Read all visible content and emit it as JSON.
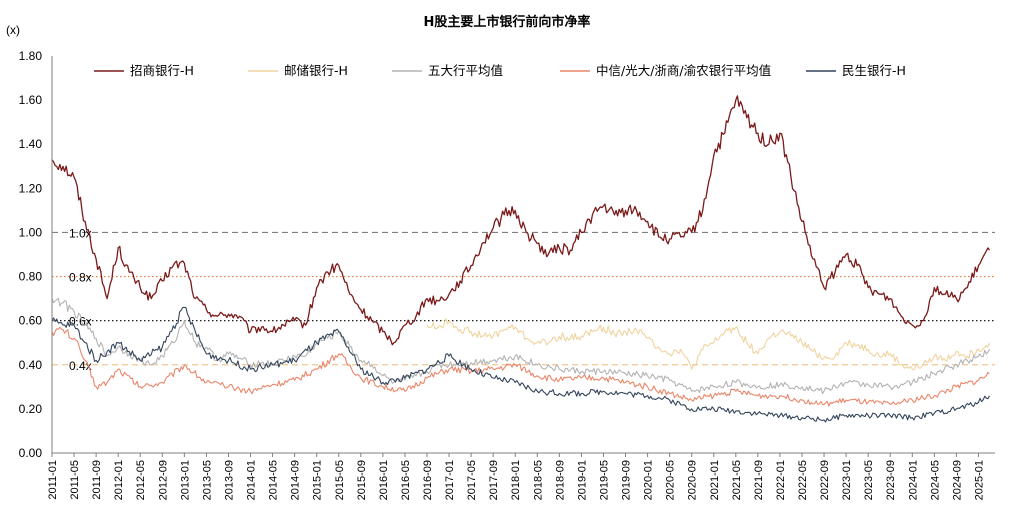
{
  "chart_data": {
    "type": "line",
    "title": "H股主要上市银行前向市净率",
    "ylabel": "(x)",
    "xlabel": "",
    "ylim": [
      0,
      1.8
    ],
    "y_ticks": [
      "0.00",
      "0.20",
      "0.40",
      "0.60",
      "0.80",
      "1.00",
      "1.20",
      "1.40",
      "1.60",
      "1.80"
    ],
    "x_ticks": [
      "2011-01",
      "2011-05",
      "2011-09",
      "2012-01",
      "2012-05",
      "2012-09",
      "2013-01",
      "2013-05",
      "2013-09",
      "2014-01",
      "2014-05",
      "2014-09",
      "2015-01",
      "2015-05",
      "2015-09",
      "2016-01",
      "2016-05",
      "2016-09",
      "2017-01",
      "2017-05",
      "2017-09",
      "2018-01",
      "2018-05",
      "2018-09",
      "2019-01",
      "2019-05",
      "2019-09",
      "2020-01",
      "2020-05",
      "2020-09",
      "2021-01",
      "2021-05",
      "2021-09",
      "2022-01",
      "2022-05",
      "2022-09",
      "2023-01",
      "2023-05",
      "2023-09",
      "2024-01",
      "2024-05",
      "2024-09",
      "2025-01"
    ],
    "reference_lines": [
      {
        "value": 1.0,
        "label": "1.0x",
        "color": "#7f7f7f",
        "style": "dashed"
      },
      {
        "value": 0.8,
        "label": "0.8x",
        "color": "#e07b39",
        "style": "dotted"
      },
      {
        "value": 0.6,
        "label": "0.6x",
        "color": "#000000",
        "style": "dotted"
      },
      {
        "value": 0.4,
        "label": "0.4x",
        "color": "#f0c890",
        "style": "dashed"
      }
    ],
    "legend_position": "top",
    "series": [
      {
        "name": "招商银行-H",
        "color": "#7b1a1a",
        "x": [
          "2011-01",
          "2011-03",
          "2011-05",
          "2011-07",
          "2011-09",
          "2011-11",
          "2012-01",
          "2012-03",
          "2012-05",
          "2012-07",
          "2012-09",
          "2012-11",
          "2013-01",
          "2013-03",
          "2013-05",
          "2013-07",
          "2013-09",
          "2013-11",
          "2014-01",
          "2014-03",
          "2014-05",
          "2014-07",
          "2014-09",
          "2014-11",
          "2015-01",
          "2015-03",
          "2015-05",
          "2015-07",
          "2015-09",
          "2015-11",
          "2016-01",
          "2016-03",
          "2016-05",
          "2016-07",
          "2016-09",
          "2016-11",
          "2017-01",
          "2017-03",
          "2017-05",
          "2017-07",
          "2017-09",
          "2017-11",
          "2018-01",
          "2018-03",
          "2018-05",
          "2018-07",
          "2018-09",
          "2018-11",
          "2019-01",
          "2019-03",
          "2019-05",
          "2019-07",
          "2019-09",
          "2019-11",
          "2020-01",
          "2020-03",
          "2020-05",
          "2020-07",
          "2020-09",
          "2020-11",
          "2021-01",
          "2021-03",
          "2021-05",
          "2021-07",
          "2021-09",
          "2021-11",
          "2022-01",
          "2022-03",
          "2022-05",
          "2022-07",
          "2022-09",
          "2022-11",
          "2023-01",
          "2023-03",
          "2023-05",
          "2023-07",
          "2023-09",
          "2023-11",
          "2024-01",
          "2024-03",
          "2024-05",
          "2024-07",
          "2024-09",
          "2024-11",
          "2025-01",
          "2025-03"
        ],
        "values": [
          1.33,
          1.3,
          1.25,
          1.05,
          0.88,
          0.7,
          0.93,
          0.82,
          0.75,
          0.7,
          0.78,
          0.85,
          0.86,
          0.7,
          0.65,
          0.62,
          0.63,
          0.62,
          0.55,
          0.57,
          0.55,
          0.58,
          0.6,
          0.58,
          0.75,
          0.82,
          0.85,
          0.72,
          0.65,
          0.6,
          0.55,
          0.5,
          0.58,
          0.62,
          0.7,
          0.69,
          0.72,
          0.78,
          0.85,
          0.95,
          1.02,
          1.08,
          1.1,
          1.0,
          0.95,
          0.9,
          0.93,
          0.92,
          1.0,
          1.08,
          1.12,
          1.08,
          1.1,
          1.1,
          1.05,
          0.98,
          0.97,
          0.98,
          1.0,
          1.1,
          1.35,
          1.45,
          1.6,
          1.52,
          1.45,
          1.4,
          1.45,
          1.25,
          1.05,
          0.88,
          0.75,
          0.82,
          0.9,
          0.85,
          0.75,
          0.72,
          0.7,
          0.62,
          0.58,
          0.6,
          0.75,
          0.72,
          0.7,
          0.75,
          0.85,
          0.92
        ]
      },
      {
        "name": "邮储银行-H",
        "color": "#f0d3a0",
        "x": [
          "2016-09",
          "2016-11",
          "2017-01",
          "2017-03",
          "2017-05",
          "2017-07",
          "2017-09",
          "2017-11",
          "2018-01",
          "2018-03",
          "2018-05",
          "2018-07",
          "2018-09",
          "2018-11",
          "2019-01",
          "2019-03",
          "2019-05",
          "2019-07",
          "2019-09",
          "2019-11",
          "2020-01",
          "2020-03",
          "2020-05",
          "2020-07",
          "2020-09",
          "2020-11",
          "2021-01",
          "2021-03",
          "2021-05",
          "2021-07",
          "2021-09",
          "2021-11",
          "2022-01",
          "2022-03",
          "2022-05",
          "2022-07",
          "2022-09",
          "2022-11",
          "2023-01",
          "2023-03",
          "2023-05",
          "2023-07",
          "2023-09",
          "2023-11",
          "2024-01",
          "2024-03",
          "2024-05",
          "2024-07",
          "2024-09",
          "2024-11",
          "2025-01",
          "2025-03"
        ],
        "values": [
          0.58,
          0.57,
          0.6,
          0.56,
          0.55,
          0.53,
          0.53,
          0.56,
          0.57,
          0.52,
          0.5,
          0.5,
          0.53,
          0.52,
          0.53,
          0.55,
          0.57,
          0.54,
          0.55,
          0.56,
          0.52,
          0.48,
          0.45,
          0.47,
          0.38,
          0.47,
          0.5,
          0.55,
          0.57,
          0.5,
          0.45,
          0.52,
          0.55,
          0.53,
          0.5,
          0.46,
          0.43,
          0.44,
          0.5,
          0.49,
          0.47,
          0.44,
          0.45,
          0.4,
          0.38,
          0.4,
          0.44,
          0.42,
          0.46,
          0.44,
          0.47,
          0.5
        ]
      },
      {
        "name": "五大行平均值",
        "color": "#b3b3b3",
        "x": [
          "2011-01",
          "2011-03",
          "2011-05",
          "2011-07",
          "2011-09",
          "2011-11",
          "2012-01",
          "2012-03",
          "2012-05",
          "2012-07",
          "2012-09",
          "2012-11",
          "2013-01",
          "2013-03",
          "2013-05",
          "2013-07",
          "2013-09",
          "2013-11",
          "2014-01",
          "2014-03",
          "2014-05",
          "2014-07",
          "2014-09",
          "2014-11",
          "2015-01",
          "2015-03",
          "2015-05",
          "2015-07",
          "2015-09",
          "2015-11",
          "2016-01",
          "2016-03",
          "2016-05",
          "2016-07",
          "2016-09",
          "2016-11",
          "2017-01",
          "2017-05",
          "2017-09",
          "2018-01",
          "2018-05",
          "2018-09",
          "2019-01",
          "2019-05",
          "2019-09",
          "2020-01",
          "2020-05",
          "2020-09",
          "2021-01",
          "2021-05",
          "2021-09",
          "2022-01",
          "2022-05",
          "2022-09",
          "2023-01",
          "2023-05",
          "2023-09",
          "2024-01",
          "2024-05",
          "2024-09",
          "2025-01",
          "2025-03"
        ],
        "values": [
          0.7,
          0.68,
          0.64,
          0.58,
          0.52,
          0.44,
          0.48,
          0.45,
          0.42,
          0.4,
          0.44,
          0.5,
          0.6,
          0.5,
          0.48,
          0.42,
          0.45,
          0.43,
          0.4,
          0.41,
          0.4,
          0.42,
          0.44,
          0.44,
          0.5,
          0.52,
          0.55,
          0.48,
          0.42,
          0.4,
          0.35,
          0.32,
          0.33,
          0.35,
          0.37,
          0.4,
          0.4,
          0.41,
          0.42,
          0.44,
          0.4,
          0.38,
          0.37,
          0.37,
          0.36,
          0.35,
          0.33,
          0.28,
          0.3,
          0.32,
          0.3,
          0.31,
          0.3,
          0.28,
          0.32,
          0.31,
          0.3,
          0.32,
          0.36,
          0.4,
          0.44,
          0.47
        ]
      },
      {
        "name": "中信/光大/浙商/渝农银行平均值",
        "color": "#e9866a",
        "x": [
          "2011-01",
          "2011-03",
          "2011-05",
          "2011-07",
          "2011-09",
          "2011-11",
          "2012-01",
          "2012-05",
          "2012-09",
          "2013-01",
          "2013-05",
          "2013-09",
          "2014-01",
          "2014-05",
          "2014-09",
          "2015-01",
          "2015-05",
          "2015-09",
          "2016-01",
          "2016-05",
          "2016-09",
          "2017-01",
          "2017-05",
          "2017-09",
          "2018-01",
          "2018-05",
          "2018-09",
          "2019-01",
          "2019-05",
          "2019-09",
          "2020-01",
          "2020-05",
          "2020-09",
          "2021-01",
          "2021-05",
          "2021-09",
          "2022-01",
          "2022-05",
          "2022-09",
          "2023-01",
          "2023-05",
          "2023-09",
          "2024-01",
          "2024-05",
          "2024-09",
          "2025-01",
          "2025-03"
        ],
        "values": [
          0.55,
          0.56,
          0.52,
          0.42,
          0.3,
          0.32,
          0.38,
          0.3,
          0.32,
          0.4,
          0.32,
          0.3,
          0.28,
          0.31,
          0.33,
          0.38,
          0.45,
          0.34,
          0.3,
          0.28,
          0.34,
          0.38,
          0.37,
          0.38,
          0.4,
          0.35,
          0.33,
          0.34,
          0.34,
          0.32,
          0.3,
          0.27,
          0.24,
          0.26,
          0.28,
          0.26,
          0.26,
          0.24,
          0.22,
          0.24,
          0.23,
          0.22,
          0.24,
          0.26,
          0.3,
          0.33,
          0.36
        ]
      },
      {
        "name": "民生银行-H",
        "color": "#34445a",
        "x": [
          "2011-01",
          "2011-03",
          "2011-05",
          "2011-07",
          "2011-09",
          "2011-11",
          "2012-01",
          "2012-05",
          "2012-09",
          "2013-01",
          "2013-03",
          "2013-05",
          "2013-09",
          "2014-01",
          "2014-05",
          "2014-09",
          "2015-01",
          "2015-05",
          "2015-09",
          "2016-01",
          "2016-05",
          "2016-09",
          "2017-01",
          "2017-05",
          "2017-09",
          "2018-01",
          "2018-05",
          "2018-09",
          "2019-01",
          "2019-05",
          "2019-09",
          "2020-01",
          "2020-05",
          "2020-09",
          "2021-01",
          "2021-05",
          "2021-09",
          "2022-01",
          "2022-05",
          "2022-09",
          "2023-01",
          "2023-05",
          "2023-09",
          "2024-01",
          "2024-05",
          "2024-09",
          "2025-01",
          "2025-03"
        ],
        "values": [
          0.6,
          0.58,
          0.58,
          0.5,
          0.42,
          0.46,
          0.5,
          0.42,
          0.48,
          0.66,
          0.55,
          0.45,
          0.42,
          0.38,
          0.4,
          0.42,
          0.5,
          0.55,
          0.38,
          0.32,
          0.34,
          0.38,
          0.44,
          0.38,
          0.34,
          0.32,
          0.28,
          0.27,
          0.27,
          0.28,
          0.27,
          0.26,
          0.24,
          0.2,
          0.2,
          0.19,
          0.18,
          0.17,
          0.16,
          0.15,
          0.17,
          0.17,
          0.17,
          0.16,
          0.18,
          0.2,
          0.23,
          0.26
        ]
      }
    ]
  }
}
